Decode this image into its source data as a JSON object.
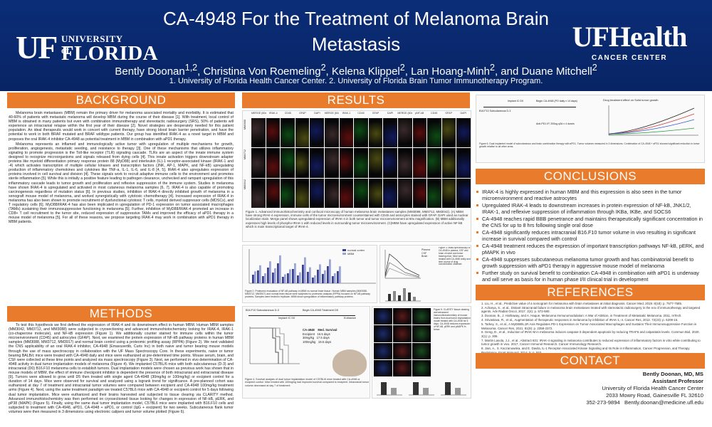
{
  "header": {
    "title": "CA-4948 For the Treatment of Melanoma Brain Metastasis",
    "authors": "Bently Doonan1,2, Christina Von Roemeling2, Kelena Klippel2, Lan Hoang-Minh2, and Duane Mitchell2",
    "affiliations": "1. University of Florida Health Cancer Center. 2. University of Florida Brain Tumor Immunotherapy Program.",
    "logo_left_uf": "UF",
    "logo_left_univ": "UNIVERSITY of",
    "logo_left_florida": "FLORIDA",
    "logo_right_main": "UFHealth",
    "logo_right_sub": "CANCER CENTER"
  },
  "sections": {
    "background": "BACKGROUND",
    "methods": "METHODS",
    "results": "RESULTS",
    "conclusions": "CONCLUSIONS",
    "references": "REFERENCES",
    "contact": "CONTACT"
  },
  "background_text": [
    "Melanoma brain metastases (MBM) remain the primary driver for melanoma associated mortality and morbidity. It is estimated that 40-60% of patients with metastatic melanoma will develop MBM during the course of their disease [1]. With treatment, local control of MBM is obtained in many patients but even with combination immunotherapy and stereotactic radiosurgery (SRS), 50% of patients will experience an intracranial relapse within the first year of their disease [2]. Novel strategies are desperately needed for this patient population. An ideal therapeutic would work in concert with current therapy, have strong blood brain barrier penetration, and have the potential to work in both BRAF mutated and BRAF wildtype patients. Our group has identified IRAK-4 as a novel target in MBM and proposes the oral IRAK-4 inhibitor CA-4948 as potential treatment in MBM in combination with aPD1 therapy.",
    "Melanoma represents an inflamed and immunologically active tumor with upregulation of multiple mechanisms for growth, proliferation, angiogenesis, metastatic seeding, and resistance to therapy [3]. One of these mechanisms that utilizes inflammatory signaling to promote progression is the Toll-like receptor (TLR) signaling cascade. TLRs are an aspect of the innate immune system designed to recognize microorganisms and signals released from dying cells [4]. This innate activation triggers downstream adapter proteins like myeloid differentiation primary response protein 88 (MyD88) and interleukin (IL)-1 receptor-associated kinase (IRAK-1 and -4) which activates transcription of multiple cellular kinases and transcription factors (JNK, AP-1, MAPK, and NF-kB) upregulating production of inflammatory chemokines and cytokines like TNF-a, IL-1, IL-6, and IL-8 [4, 5]. IRAK-4 also upregulates expression of proteins involved in cell survival and division [4]. These signals work to recruit adaptive immune cells to the environment and promotes sterile inflammation [5]. While this is initially a positive feature leading to pathogen clearance, unchecked and rampant upregulation of this inflammatory cascade leads to tumor growth and proliferation and reflexive suppression of the immune system. Studies in melanoma have shown IRAK-4 is upregulated and activated in most cutaneous melanoma samples [6, 7]. IRAK-4 is also capable of promoting carcinogenesis regardless of mutation status [6]. In previous studies, inhibition of IRAK-4 directly inhibited growth of melanoma in a xenograft mouse model of melanoma, and worked synergistically with cytotoxic chemotherapy [4]. Increased expression of IRAK-4 in melanoma has also been shown to promote recruitment of dysfunctional cytotoxic T cells, myeloid derived suppressor cells (MDSCs), and T regulatory cells [6]. MyD88/IRAK-4 has also been implicated in upregulation of PD-1 expression on tumor associated macrophages (TAMs) sustaining their immunosuppressive functioning in melanoma [5]. Further, inhibition of MyD88/IRAK-4 promoted an increase in CD8+ T cell recruitment to the tumor site, reduced expression of suppressive TAMs and improved the efficacy of aPD1 therapy in a mouse model of melanoma [5]. For all of these reasons, we propose targeting IRAK-4 may work in combination with aPD1 therapy in MBM patients."
  ],
  "methods_text": "To test this hypothesis we first defined the expression of IRAK-4 and its downstream effect in human MBM. Human MBM samples (MM3042, MM3712, and MM3088) were subjected to cryosectioning and advanced immunohistochemistry looking for IRAK-4, IRAK-1 (co-chaperone molecule), and NF-kB expression (Figure 1). We additionally counter stained for immune cells within the tumor microenvironment (CD45) and astrocytes (GFAP). Next, we examined the protein expression of NF-kB pathway proteins in human MBM samples (MM3088, MM3712, MM3917) and normal brain control using a proteomic profiling assay (RPPA) (Figure 2). We next validated the CNS applicability of an oral IRAK-4 inhibitor, CA-4948 (Emavusertib, Curis Inc) in both naive and tumor bearing mouse models through the use of mass spectroscopy in collaboration with the UF Mass Spectroscopy Core. In these experiments, naive or tumor bearing BALB/c mice were treated with CA-4948 daily and mice were euthanized at pre-determined time points. Mouse serum, brain, and CSF were collected at these time points and analyzed via mass spectroscopy (Figure 3). Next, we performed in vivo determination of CA-4948 activity in dual tumor implantation models of melanoma (Figure 4). We implanted C57BL/6 mice with both subcutaneous (D-3) and intracranial (D0) B16.F10 melanoma cells to establish tumors. Dual implantation models were chosen as previous work has shown that in mouse models of MBM, the effect of immune checkpoint inhibitor is dependent the presence of both intracranial and extracranial disease [9]. Tumors were allowed to grow until D5 then treated with single agent CA-4948 (30mg/kg or 100mg/kg) or excipient control for a duration of 14 days. Mice were observed for survival and analyzed using a logrank trend for significance. A pre-planned cohort was euthanized at day 7 of treatment and intracranial tumor volumes were compared between excipient and CA-4948 100mg/kg treatment arms (Figure 4). Next, using the same treatment paradigm we treated C57BL6 mice with CA-4948 or excipient control for 5 days following dual tumor implantation. Mice were euthanized and their brains harvested and subjected to tissue clearing via CLARITY method. Advanced immunohistochemistry was then performed on cryosectioned tissue looking for changes in expression of NF-kB, pERK, and pP38 (MAPK) (Figure 5). Finally, using the same dual tumor implantation model, C57BL6 mice were implanted with B16.F10 cells and subjected to treatment with CA-4948, aPD1, CA-4948 + aPD1, or control (IgG + excipient) for two weeks. Subcutaneous flank tumor volumes were then measured in 3 dimensions using electronic calipers and tumor volume plotted (Figure 6).",
  "figures": {
    "fig1_labels": [
      "MERGE (60x)",
      "IRAK-4",
      "CD45",
      "GFAP",
      "DAPI",
      "MERGE (60x)",
      "IRAK-1",
      "CD45",
      "GFAP",
      "DAPI",
      "MERGE (60x)",
      "pNF-kB",
      "CD45",
      "GFAP",
      "DAPI"
    ],
    "fig1_rows": [
      "MM3088",
      "MM3712",
      "MM3042"
    ],
    "fig1_caption": "Figure 1. Advanced immunohistochemistry and confocal microscopy of human melanoma brain metastases samples (MM3088, MM3712, MM3042). (A) MBM have strong IRAK-4 expression, immune cells of the tumor microenvironment counterstained with CD45 and astrocytes stained with GFAP. DAPI used as nuclear localization stain. Merge panel shows upregulated expression of IRAK-4 in both tumor and tumor microenvironment at 60x magnification. (B) MBM additionally expresses high levels of phospho-IRAK-1 with reduced levels in surrounding tumor microenvironment. (C)MBM have upregulated expression of active NF-kB which is main transcriptional target of IRAK-4.",
    "fig2_caption": "Figure 2. Proteomic evaluation of NF-kB pathway in MBM vs normal brain tissue. Human MBM samples (MM3088, MM3712, MM3917) and normal brain tissue were subjected to proteomic analysis (RPPA) focused on NF-kB pathway proteins. Samples were tested in triplicate. MBM show upregulation of inflammatory pathway proteins.",
    "fig2_legend": [
      "normal cortex",
      "MBM"
    ],
    "fig3_legend": [
      "Plasma",
      "CSF",
      "Brain"
    ],
    "fig3_caption": "Figure 3. Mass spectroscopy of CA-4948 in plasma, CSF and brain of naive and tumor bearing mice. Mice were treated with CA-4948 orally and time course of drug concentration obtained.",
    "fig4_caption": "Figure 4. Survival analysis of dual tumor implantation model of C57BL/6 mice treated with CA-4948 or excipient control. Mice treated with 100mg/kg had improved survival compared to excipient. Intracranial tumor volume decreased at day 7 of treatment.",
    "fig4_timeline": [
      "B16.F10 Subcutaneous D-3",
      "Implant IC D0",
      "Begin CA-4948 Treatment D5",
      "Euthanize"
    ],
    "fig4_legend_title": "CA-4948",
    "fig4_legend_col": "Med. Survival",
    "fig4_legend": [
      {
        "label": "Excipient",
        "value": "16.5 days",
        "color": "#222222"
      },
      {
        "label": "30mg/kg",
        "value": "17.5 days",
        "color": "#555555"
      },
      {
        "label": "100mg/kg",
        "value": "19.5 days",
        "color": "#888888"
      }
    ],
    "fig4_axis_y": "Percent survival",
    "fig5_caption": "Figure 5. CLARITY tissue clearing and advanced immunohistochemistry of mouse brains from dual tumor implantation model treated with CA-4948 for 5 days. CA-4948 reduces expression of NF-kB, pERK and pMAPK in tumor.",
    "fig6_timeline": [
      "B16.F10 Subcutaneous D-3",
      "Implant IC D0",
      "Begin CA-4948 (PO daily x 14 days)"
    ],
    "fig6_doses": [
      "Anti-PD1 IP, 200ug q3d x 4 doses"
    ],
    "fig6_caption": "Figure 6. Dual implanted model of subcutaneous and brain combination therapy with aPD1. Tumor volumes measured in 3 dimensions. Combination of CA-4948 + aPD1 showed significant reduction in tumor growth relative to all other arms.",
    "fig6_title": "Drug treatment effect on Solid tumor growth"
  },
  "conclusions": [
    "IRAK-4 is highly expressed in human MBM and this expression is also seen in the tumor microenvironment and reactive astrocytes",
    "Upregulated IRAK-4 leads to downstream increases in protein expression of NF-kB, JNK1/2, IRAK-1, and reflexive suppression of inflammation through IKBa, IKBe, and SOCS6",
    "CA-4948 reaches rapid BBB penetrance and maintains therapeutically significant concentration in the CNS for up to 8 hrs following single oral dose",
    "CA-4948 significantly reduces intracranial B16.F10 tumor volume in vivo resulting in significant increase in survival compared with control",
    "CA-4948 treatment reduces the expression of important transcription pathways NF-kB, pERK, and pMAPK in vivo",
    "CA-4948 suppresses subcutaneous melanoma tumor growth and has combinatorial benefit to growth suppression with aPD1 therapy in aggressive mouse model of melanoma",
    "Further study on survival benefit to combination CA-4948 in combination with aPD1 is underway and will serve as basis for in human phase I/II clinical trial in development"
  ],
  "references": [
    "1. Liu, H., et al., Predictive value of a nomogram for melanoma with brain metastases at initial diagnosis. Cancer Med, 2019. 8(18): p. 7577-7585.",
    "2. Acharya, S., et al., Distant intracranial failure in melanoma brain metastases treated with stereotactic radiosurgery in the era of immunotherapy and targeted agents. Adv Radiat Oncol, 2017. 2(4): p. 572-580.",
    "3. Doonan, B., J. Hathaway, and A. Haque, Melanoma Immunomodulation: A War of Attrition, in Treatment of Metastatic Melanoma. 2011, InTech.",
    "4. Srivastava, R., et al., Augmentation of therapeutic responses in melanoma by inhibition of IRAK-1,-4. Cancer Res, 2012. 72(23): p. 6209-16.",
    "5. Tarkey, S., et al., A MyD88/IL1R Axis Regulates PD-1 Expression on Tumor-Associated Macrophages and Sustains Their Immunosuppressive Function in Melanoma. Cancer Res, 2021. 81(9): p. 2358-2372.",
    "6. Geng, D., et al., Induction of IRAK-M in melanoma induces caspase-3 dependent apoptosis by reducing TRAF6 and calpastatin levels. Commun Biol, 2020. 3(1): p. 306.",
    "7. Martin Lasola, J.J., et al., Abstract 831: IRAK-4 signaling in melanoma contributes to reduced expression of inflammatory factors in vitro while contributing to tumor growth in vivo. 2017, Cancer Immunol Research. Cancer Immunology Research.",
    "8. Jain, A., S. Kaczanowska, and E. Davila, IL-1 Receptor-Associated Kinase Signaling and Its Role in Inflammation, Cancer Progression, and Therapy Resistance. Front Immunol, 2014. 5: p. 553.",
    "9. Taggart, D., et al., Anti-PD-1/anti-CTLA-4 efficacy in melanoma brain metastases depends on extracranial disease and augmentation of CD8+ T cell trafficking. Proceedings of the National Academy of Sciences, 2018. 115(7): p. E1540-E1549."
  ],
  "contact": {
    "name": "Bently Doonan, MD, MS",
    "role": "Assistant Professor",
    "org": "University of Florida Health Cancer Center",
    "address": "2033 Mowry Road, Gainesville FL 32610",
    "phone": "352-273-9894",
    "email": "Bently.doonan@medicine.ufl.edu"
  },
  "colors": {
    "header_bg": "#0b2d78",
    "section_accent": "#e97b2c"
  }
}
